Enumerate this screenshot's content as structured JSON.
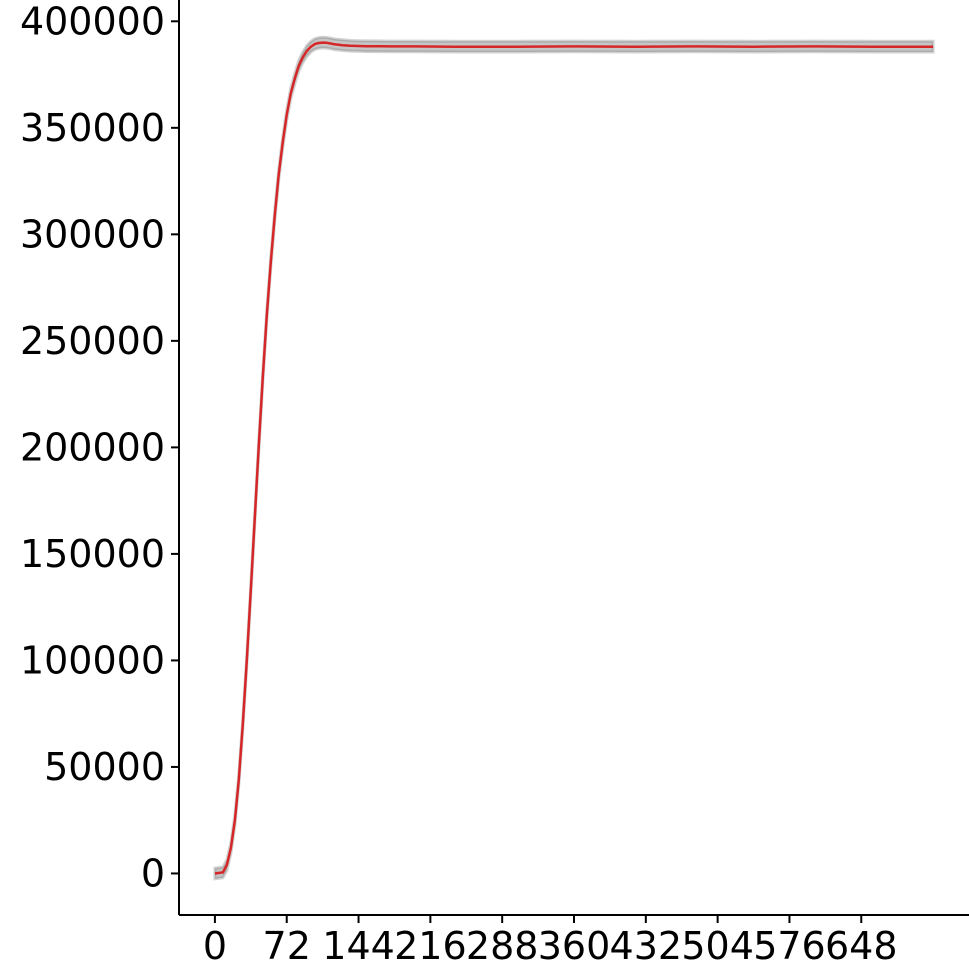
{
  "chart_data": {
    "type": "line",
    "title": "",
    "xlabel": "",
    "ylabel": "",
    "xlim": [
      -36,
      756
    ],
    "ylim": [
      -19500,
      410000
    ],
    "xticks": [
      0,
      72,
      144,
      216,
      288,
      360,
      432,
      504,
      576,
      648
    ],
    "yticks": [
      0,
      50000,
      100000,
      150000,
      200000,
      250000,
      300000,
      350000,
      400000
    ],
    "grid": false,
    "legend": "none",
    "colors": {
      "mean_line": "#d62728",
      "replicate_band": "#7f7f7f"
    },
    "band_width": 2500,
    "series": [
      {
        "x": [
          0,
          8,
          12,
          16,
          20,
          24,
          28,
          32,
          36,
          40,
          44,
          48,
          52,
          56,
          60,
          64,
          68,
          72,
          76,
          80,
          84,
          88,
          92,
          96,
          100,
          104,
          108,
          112,
          116,
          120,
          128,
          136,
          144,
          152,
          160,
          176,
          200,
          240,
          300,
          360,
          420,
          480,
          540,
          600,
          660,
          720
        ],
        "values": [
          0,
          500,
          4000,
          12000,
          25000,
          44000,
          70000,
          100000,
          133000,
          167000,
          201000,
          233000,
          262000,
          287000,
          309000,
          328000,
          343000,
          356000,
          366000,
          373000,
          379000,
          383000,
          386000,
          388000,
          389300,
          389800,
          390000,
          389900,
          389600,
          389200,
          388800,
          388500,
          388400,
          388300,
          388300,
          388200,
          388200,
          388100,
          388100,
          388200,
          388100,
          388200,
          388100,
          388200,
          388100,
          388100
        ]
      }
    ]
  }
}
